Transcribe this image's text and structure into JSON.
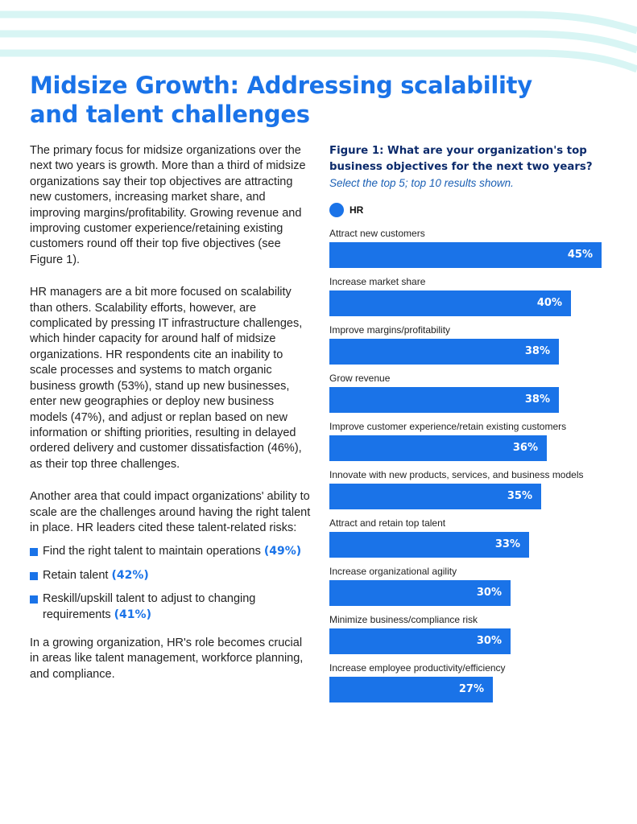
{
  "page_title": "Midsize Growth: Addressing scalability and talent challenges",
  "colors": {
    "accent": "#1a73e8",
    "figure_title": "#0b2a6b",
    "wave": "#d8f5f4"
  },
  "body": {
    "p1": "The primary focus for midsize organizations over the next two years is growth. More than a third of midsize organizations say their top objectives are attracting new customers, increasing market share, and improving margins/profitability. Growing revenue and improving customer experience/retaining existing customers round off their top five objectives (see Figure 1).",
    "p2": "HR managers are a bit more focused on scalability than others. Scalability efforts, however, are complicated by pressing IT infrastructure challenges, which hinder capacity for around half of midsize organizations. HR respondents cite an inability to scale processes and systems to match organic business growth (53%), stand up new businesses, enter new geographies or deploy new business models (47%), and adjust or replan based on new information or shifting priorities, resulting in delayed ordered delivery and customer dissatisfaction (46%), as their top three challenges.",
    "p3": "Another area that could impact organizations' ability to scale are the challenges around having the right talent in place. HR leaders cited these talent-related risks:",
    "risks": [
      {
        "text": "Find the right talent to maintain operations",
        "pct": "(49%)"
      },
      {
        "text": "Retain talent",
        "pct": "(42%)"
      },
      {
        "text": "Reskill/upskill talent to adjust to changing requirements",
        "pct": "(41%)"
      }
    ],
    "p4": "In a growing organization, HR's role becomes crucial in areas like talent management, workforce planning, and compliance."
  },
  "figure": {
    "title": "Figure 1: What are your organization's top business objectives for the next two years?",
    "subtitle": "Select the top 5; top 10 results shown."
  },
  "chart_data": {
    "type": "bar",
    "orientation": "horizontal",
    "legend": [
      "HR"
    ],
    "categories": [
      "Attract new customers",
      "Increase market share",
      "Improve margins/profitability",
      "Grow revenue",
      "Improve customer experience/retain existing customers",
      "Innovate with new products, services, and business models",
      "Attract and retain top talent",
      "Increase organizational agility",
      "Minimize business/compliance risk",
      "Increase employee productivity/efficiency"
    ],
    "series": [
      {
        "name": "HR",
        "values": [
          45,
          40,
          38,
          38,
          36,
          35,
          33,
          30,
          30,
          27
        ]
      }
    ],
    "value_labels": [
      "45%",
      "40%",
      "38%",
      "38%",
      "36%",
      "35%",
      "33%",
      "30%",
      "30%",
      "27%"
    ]
  }
}
